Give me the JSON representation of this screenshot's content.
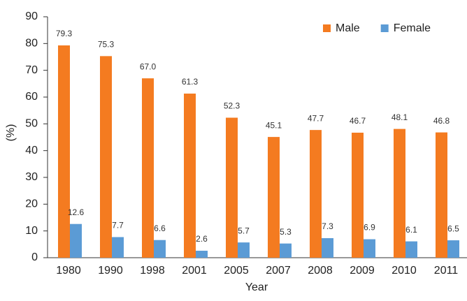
{
  "chart_data": {
    "type": "bar",
    "y_label": "(%)",
    "x_label": "Year",
    "categories": [
      "1980",
      "1990",
      "1998",
      "2001",
      "2005",
      "2007",
      "2008",
      "2009",
      "2010",
      "2011"
    ],
    "series": [
      {
        "name": "Male",
        "color": "#f47b20",
        "values": [
          79.3,
          75.3,
          67.0,
          61.3,
          52.3,
          45.1,
          47.7,
          46.7,
          48.1,
          46.8
        ],
        "value_labels": [
          "79.3",
          "75.3",
          "67.0",
          "61.3",
          "52.3",
          "45.1",
          "47.7",
          "46.7",
          "48.1",
          "46.8"
        ]
      },
      {
        "name": "Female",
        "color": "#5b9bd5",
        "values": [
          12.6,
          7.7,
          6.6,
          2.6,
          5.7,
          5.3,
          7.3,
          6.9,
          6.1,
          6.5
        ],
        "value_labels": [
          "12.6",
          "7.7",
          "6.6",
          "2.6",
          "5.7",
          "5.3",
          "7.3",
          "6.9",
          "6.1",
          "6.5"
        ]
      }
    ],
    "ylim": [
      0,
      90
    ],
    "yticks": [
      0,
      10,
      20,
      30,
      40,
      50,
      60,
      70,
      80,
      90
    ],
    "legend": "top-right"
  }
}
